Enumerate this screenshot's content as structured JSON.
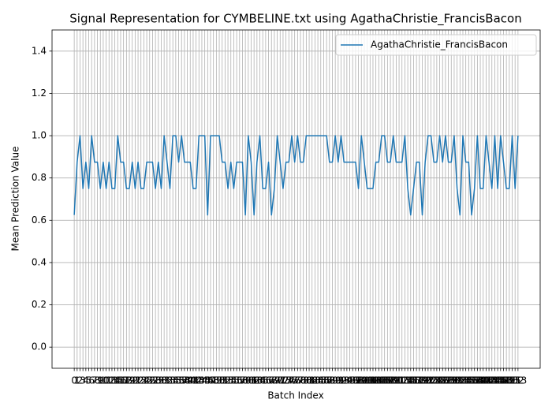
{
  "chart_data": {
    "type": "line",
    "title": "Signal Representation for CYMBELINE.txt using AgathaChristie_FrancisBacon",
    "x_label": "Batch Index",
    "y_label": "Mean Prediction Value",
    "x": [
      0,
      1,
      2,
      3,
      4,
      5,
      6,
      7,
      8,
      9,
      10,
      11,
      12,
      13,
      14,
      15,
      16,
      17,
      18,
      19,
      20,
      21,
      22,
      23,
      24,
      25,
      26,
      27,
      28,
      29,
      30,
      31,
      32,
      33,
      34,
      35,
      36,
      37,
      38,
      39,
      40,
      41,
      42,
      43,
      44,
      45,
      46,
      47,
      48,
      49,
      50,
      51,
      52,
      53,
      54,
      55,
      56,
      57,
      58,
      59,
      60,
      61,
      62,
      63,
      64,
      65,
      66,
      67,
      68,
      69,
      70,
      71,
      72,
      73,
      74,
      75,
      76,
      77,
      78,
      79,
      80,
      81,
      82,
      83,
      84,
      85,
      86,
      87,
      88,
      89,
      90,
      91,
      92,
      93,
      94,
      95,
      96,
      97,
      98,
      99,
      100,
      101,
      102,
      103,
      104,
      105,
      106,
      107,
      108,
      109,
      110,
      111,
      112,
      113,
      114,
      115,
      116,
      117,
      118,
      119,
      120,
      121,
      122,
      123,
      124,
      125,
      126,
      127,
      128,
      129,
      130,
      131,
      132,
      133,
      134,
      135,
      136,
      137,
      138,
      139,
      140,
      141,
      142,
      143,
      144,
      145,
      146,
      147,
      148,
      149,
      150,
      151,
      152,
      153
    ],
    "series": [
      {
        "name": "AgathaChristie_FrancisBacon",
        "color": "#1f77b4",
        "values": [
          0.625,
          0.875,
          1,
          0.75,
          0.875,
          0.75,
          1,
          0.875,
          0.875,
          0.75,
          0.875,
          0.75,
          0.875,
          0.75,
          0.75,
          1,
          0.875,
          0.875,
          0.75,
          0.75,
          0.875,
          0.75,
          0.875,
          0.75,
          0.75,
          0.875,
          0.875,
          0.875,
          0.75,
          0.875,
          0.75,
          1,
          0.875,
          0.75,
          1,
          1,
          0.875,
          1,
          0.875,
          0.875,
          0.875,
          0.75,
          0.75,
          1,
          1,
          1,
          0.625,
          1,
          1,
          1,
          1,
          0.875,
          0.875,
          0.75,
          0.875,
          0.75,
          0.875,
          0.875,
          0.875,
          0.625,
          1,
          0.875,
          0.625,
          0.875,
          1,
          0.75,
          0.75,
          0.875,
          0.625,
          0.75,
          1,
          0.875,
          0.75,
          0.875,
          0.875,
          1,
          0.875,
          1,
          0.875,
          0.875,
          1,
          1,
          1,
          1,
          1,
          1,
          1,
          1,
          0.875,
          0.875,
          1,
          0.875,
          1,
          0.875,
          0.875,
          0.875,
          0.875,
          0.875,
          0.75,
          1,
          0.875,
          0.75,
          0.75,
          0.75,
          0.875,
          0.875,
          1,
          1,
          0.875,
          0.875,
          1,
          0.875,
          0.875,
          0.875,
          1,
          0.75,
          0.625,
          0.75,
          0.875,
          0.875,
          0.625,
          0.875,
          1,
          1,
          0.875,
          0.875,
          1,
          0.875,
          1,
          0.875,
          0.875,
          1,
          0.75,
          0.625,
          1,
          0.875,
          0.875,
          0.625,
          0.75,
          1,
          0.75,
          0.75,
          1,
          0.875,
          0.75,
          1,
          0.75,
          1,
          0.875,
          0.75,
          0.75,
          1,
          0.75,
          1
        ]
      }
    ],
    "xlim": [
      -7.65,
      160.65
    ],
    "ylim": [
      -0.1,
      1.5
    ],
    "xticks": [
      0,
      1,
      2,
      3,
      4,
      5,
      6,
      7,
      8,
      9,
      10,
      11,
      12,
      13,
      14,
      15,
      16,
      17,
      18,
      19,
      20,
      21,
      22,
      23,
      24,
      25,
      26,
      27,
      28,
      29,
      30,
      31,
      32,
      33,
      34,
      35,
      36,
      37,
      38,
      39,
      40,
      41,
      42,
      43,
      44,
      45,
      46,
      47,
      48,
      49,
      50,
      51,
      52,
      53,
      54,
      55,
      56,
      57,
      58,
      59,
      60,
      61,
      62,
      63,
      64,
      65,
      66,
      67,
      68,
      69,
      70,
      71,
      72,
      73,
      74,
      75,
      76,
      77,
      78,
      79,
      80,
      81,
      82,
      83,
      84,
      85,
      86,
      87,
      88,
      89,
      90,
      91,
      92,
      93,
      94,
      95,
      96,
      97,
      98,
      99,
      100,
      101,
      102,
      103,
      104,
      105,
      106,
      107,
      108,
      109,
      110,
      111,
      112,
      113,
      114,
      115,
      116,
      117,
      118,
      119,
      120,
      121,
      122,
      123,
      124,
      125,
      126,
      127,
      128,
      129,
      130,
      131,
      132,
      133,
      134,
      135,
      136,
      137,
      138,
      139,
      140,
      141,
      142,
      143,
      144,
      145,
      146,
      147,
      148,
      149,
      150,
      151,
      152,
      153
    ],
    "yticks": [
      {
        "value": 0,
        "label": "0.0"
      },
      0.2,
      0.4,
      0.6,
      0.8,
      {
        "value": 1,
        "label": "1.0"
      },
      1.2,
      1.4
    ],
    "grid": true,
    "legend": "upper right"
  }
}
